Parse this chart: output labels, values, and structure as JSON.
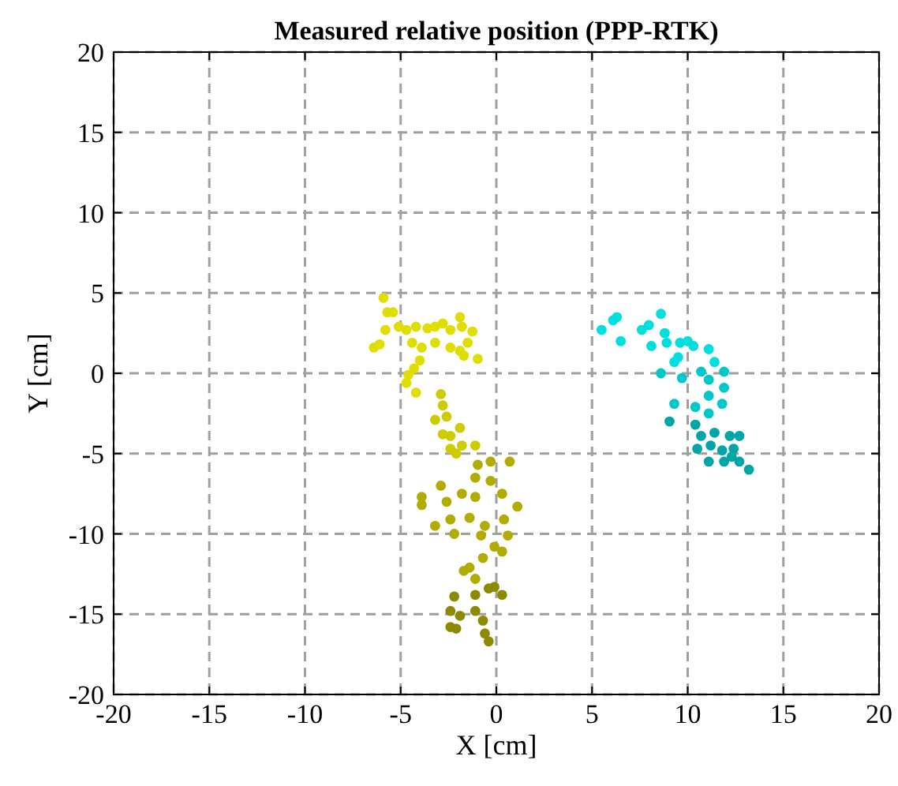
{
  "chart_data": {
    "type": "scatter",
    "title": "Measured relative position (PPP-RTK)",
    "xlabel": "X [cm]",
    "ylabel": "Y [cm]",
    "xlim": [
      -20,
      20
    ],
    "ylim": [
      -20,
      20
    ],
    "xticks": [
      -20,
      -15,
      -10,
      -5,
      0,
      5,
      10,
      15,
      20
    ],
    "yticks": [
      -20,
      -15,
      -10,
      -5,
      0,
      5,
      10,
      15,
      20
    ],
    "grid": true,
    "marker": "circle",
    "series": [
      {
        "color": "#dede00",
        "x": [
          -5.9,
          -5.7,
          -5.4,
          -5.8,
          -6.4,
          -6.1,
          -5.1,
          -4.7,
          -4.2,
          -3.6,
          -3.2,
          -2.8,
          -2.4,
          -1.9,
          -1.8,
          -1.25,
          -1.5,
          -4.4,
          -3.9,
          -3.2,
          -2.4,
          -1.9,
          -1.7,
          -0.97,
          -4.0,
          -4.3,
          -4.6,
          -4.7,
          -4.2
        ],
        "values": [
          4.7,
          3.8,
          3.8,
          2.7,
          1.6,
          1.8,
          2.9,
          2.7,
          2.9,
          2.8,
          2.9,
          3.1,
          2.7,
          3.5,
          2.9,
          2.6,
          1.9,
          1.9,
          1.6,
          1.9,
          1.6,
          1.4,
          1.1,
          0.9,
          0.8,
          0.3,
          -0.1,
          -0.6,
          -1.2
        ]
      },
      {
        "color": "#cccc00",
        "x": [
          -2.9,
          -2.8,
          -3.2,
          -2.6,
          -1.9,
          -2.4,
          -2.8,
          -2.4,
          -1.8,
          -1.1,
          -2.1
        ],
        "values": [
          -1.3,
          -2.0,
          -2.9,
          -2.7,
          -3.4,
          -3.9,
          -3.8,
          -4.7,
          -4.5,
          -4.5,
          -5.0
        ]
      },
      {
        "color": "#b0ac00",
        "x": [
          -0.97,
          -0.3,
          0.7,
          -1.1,
          -0.3,
          -2.9,
          -3.9,
          -3.9,
          -2.6,
          -1.8,
          -1.1,
          0.3,
          1.1,
          -3.2,
          -2.4,
          -1.4,
          -0.6,
          0.4,
          0.6,
          -0.8,
          -2.2,
          -0.1,
          0.3,
          -0.7,
          -1.4,
          -1.7,
          -1.1
        ],
        "values": [
          -5.7,
          -5.5,
          -5.5,
          -6.5,
          -6.7,
          -7.0,
          -7.7,
          -8.2,
          -8.0,
          -7.5,
          -7.7,
          -7.5,
          -8.3,
          -9.5,
          -9.1,
          -9.0,
          -9.5,
          -9.1,
          -10.1,
          -10.1,
          -10.0,
          -10.8,
          -11.1,
          -11.5,
          -12.1,
          -12.3,
          -12.8
        ]
      },
      {
        "color": "#8c8a00",
        "x": [
          -2.2,
          -2.4,
          -1.1,
          -0.4,
          0.3,
          -0.1,
          -1.9,
          -1.1,
          -0.7,
          -0.6,
          -0.4,
          -2.4,
          -2.1
        ],
        "values": [
          -13.9,
          -14.8,
          -13.8,
          -13.4,
          -13.8,
          -13.3,
          -15.1,
          -14.8,
          -15.4,
          -16.2,
          -16.7,
          -15.8,
          -15.9
        ]
      },
      {
        "color": "#00dede",
        "x": [
          5.5,
          6.1,
          6.3,
          6.5,
          7.6,
          7.97,
          8.6,
          8.1,
          8.8,
          8.9,
          9.6,
          10.0,
          10.3,
          9.5,
          9.3,
          11.1,
          11.4
        ],
        "values": [
          2.7,
          3.3,
          3.5,
          2.0,
          2.7,
          3.0,
          3.7,
          1.7,
          2.5,
          1.9,
          1.9,
          2.0,
          1.7,
          1.0,
          0.7,
          1.5,
          0.7
        ]
      },
      {
        "color": "#00c8c8",
        "x": [
          8.6,
          10.7,
          11.1,
          11.9,
          11.9,
          11.1,
          10.4,
          9.3,
          11.8,
          11.1,
          9.7
        ],
        "values": [
          0,
          0.1,
          -0.4,
          0.1,
          -0.9,
          -1.4,
          -2.1,
          -1.9,
          -1.9,
          -2.5,
          -0.3
        ]
      },
      {
        "color": "#00a6a6",
        "x": [
          9.05,
          10.4,
          10.7,
          11.4,
          12.2,
          12.7,
          10.5,
          11.2,
          11.8,
          12.4,
          11.1,
          11.9,
          12.7,
          13.2,
          12.3
        ],
        "values": [
          -3.0,
          -3.2,
          -3.9,
          -3.7,
          -3.9,
          -3.9,
          -4.7,
          -4.5,
          -4.8,
          -4.7,
          -5.5,
          -5.5,
          -5.5,
          -6.0,
          -5.2
        ]
      }
    ]
  }
}
